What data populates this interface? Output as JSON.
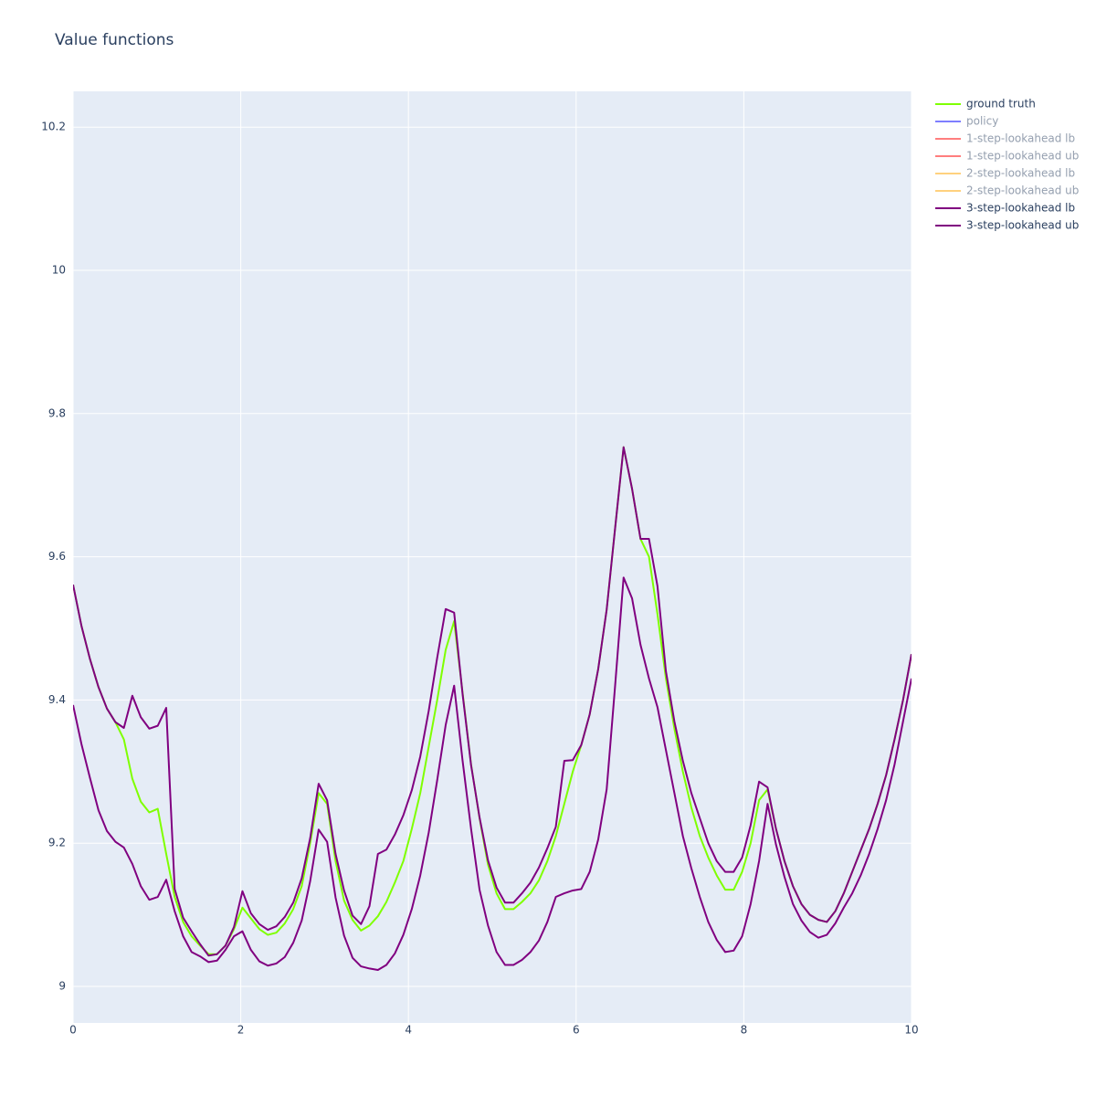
{
  "chart_data": {
    "type": "line",
    "title": "Value functions",
    "x": [
      0,
      0.101,
      0.202,
      0.303,
      0.404,
      0.505,
      0.606,
      0.707,
      0.808,
      0.909,
      1.01,
      1.111,
      1.212,
      1.313,
      1.414,
      1.515,
      1.616,
      1.717,
      1.818,
      1.919,
      2.02,
      2.121,
      2.222,
      2.323,
      2.424,
      2.525,
      2.626,
      2.727,
      2.828,
      2.929,
      3.03,
      3.131,
      3.232,
      3.333,
      3.434,
      3.535,
      3.636,
      3.737,
      3.838,
      3.939,
      4.04,
      4.141,
      4.242,
      4.343,
      4.444,
      4.545,
      4.646,
      4.747,
      4.848,
      4.949,
      5.051,
      5.152,
      5.253,
      5.354,
      5.455,
      5.556,
      5.657,
      5.758,
      5.859,
      5.96,
      6.061,
      6.162,
      6.263,
      6.364,
      6.465,
      6.566,
      6.667,
      6.768,
      6.869,
      6.97,
      7.071,
      7.172,
      7.273,
      7.374,
      7.475,
      7.576,
      7.677,
      7.778,
      7.879,
      7.98,
      8.081,
      8.182,
      8.283,
      8.384,
      8.485,
      8.586,
      8.687,
      8.788,
      8.889,
      8.99,
      9.091,
      9.192,
      9.293,
      9.394,
      9.495,
      9.596,
      9.697,
      9.798,
      9.899,
      10
    ],
    "series": [
      {
        "name": "ground truth",
        "color": "#7fff00",
        "values": [
          9.561,
          9.503,
          9.457,
          9.418,
          9.388,
          9.369,
          9.345,
          9.29,
          9.258,
          9.243,
          9.248,
          9.185,
          9.125,
          9.09,
          9.07,
          9.057,
          9.045,
          9.045,
          9.057,
          9.08,
          9.11,
          9.095,
          9.08,
          9.072,
          9.075,
          9.088,
          9.108,
          9.14,
          9.2,
          9.27,
          9.255,
          9.175,
          9.12,
          9.093,
          9.078,
          9.085,
          9.098,
          9.118,
          9.145,
          9.175,
          9.22,
          9.27,
          9.335,
          9.4,
          9.47,
          9.51,
          9.41,
          9.31,
          9.235,
          9.17,
          9.13,
          9.108,
          9.108,
          9.118,
          9.13,
          9.148,
          9.175,
          9.21,
          9.255,
          9.3,
          9.337,
          9.38,
          9.443,
          9.526,
          9.64,
          9.753,
          9.695,
          9.625,
          9.6,
          9.52,
          9.43,
          9.36,
          9.3,
          9.25,
          9.21,
          9.18,
          9.155,
          9.135,
          9.135,
          9.16,
          9.2,
          9.26,
          9.275,
          9.22,
          9.175,
          9.14,
          9.115,
          9.1,
          9.093,
          9.09,
          9.105,
          9.13,
          9.16,
          9.19,
          9.22,
          9.255,
          9.295,
          9.345,
          9.4,
          9.464
        ]
      },
      {
        "name": "policy",
        "color": "#0000ff",
        "visible": "legendonly"
      },
      {
        "name": "1-step-lookahead lb",
        "color": "#ff0000",
        "visible": "legendonly"
      },
      {
        "name": "1-step-lookahead ub",
        "color": "#ff0000",
        "visible": "legendonly"
      },
      {
        "name": "2-step-lookahead lb",
        "color": "#ffa500",
        "visible": "legendonly"
      },
      {
        "name": "2-step-lookahead ub",
        "color": "#ffa500",
        "visible": "legendonly"
      },
      {
        "name": "3-step-lookahead lb",
        "color": "#800080",
        "values": [
          9.393,
          9.338,
          9.291,
          9.246,
          9.217,
          9.202,
          9.194,
          9.171,
          9.14,
          9.121,
          9.125,
          9.149,
          9.105,
          9.07,
          9.048,
          9.042,
          9.034,
          9.036,
          9.051,
          9.07,
          9.077,
          9.051,
          9.035,
          9.029,
          9.032,
          9.041,
          9.061,
          9.092,
          9.147,
          9.219,
          9.202,
          9.124,
          9.071,
          9.04,
          9.028,
          9.025,
          9.023,
          9.03,
          9.046,
          9.072,
          9.108,
          9.155,
          9.215,
          9.288,
          9.365,
          9.42,
          9.315,
          9.22,
          9.135,
          9.085,
          9.048,
          9.03,
          9.03,
          9.037,
          9.048,
          9.064,
          9.09,
          9.125,
          9.13,
          9.134,
          9.136,
          9.16,
          9.205,
          9.275,
          9.42,
          9.571,
          9.542,
          9.477,
          9.43,
          9.39,
          9.33,
          9.27,
          9.21,
          9.165,
          9.125,
          9.09,
          9.065,
          9.048,
          9.05,
          9.07,
          9.115,
          9.175,
          9.255,
          9.198,
          9.153,
          9.115,
          9.092,
          9.076,
          9.068,
          9.072,
          9.088,
          9.11,
          9.13,
          9.155,
          9.185,
          9.22,
          9.26,
          9.31,
          9.37,
          9.43
        ]
      },
      {
        "name": "3-step-lookahead ub",
        "color": "#800080",
        "values": [
          9.561,
          9.503,
          9.457,
          9.418,
          9.388,
          9.369,
          9.361,
          9.406,
          9.376,
          9.36,
          9.364,
          9.389,
          9.136,
          9.096,
          9.077,
          9.059,
          9.043,
          9.045,
          9.057,
          9.083,
          9.133,
          9.102,
          9.087,
          9.079,
          9.084,
          9.097,
          9.117,
          9.151,
          9.207,
          9.283,
          9.26,
          9.185,
          9.134,
          9.099,
          9.087,
          9.112,
          9.185,
          9.191,
          9.212,
          9.239,
          9.274,
          9.321,
          9.385,
          9.459,
          9.527,
          9.522,
          9.408,
          9.309,
          9.236,
          9.176,
          9.138,
          9.117,
          9.117,
          9.13,
          9.145,
          9.166,
          9.193,
          9.223,
          9.315,
          9.316,
          9.337,
          9.38,
          9.443,
          9.526,
          9.64,
          9.753,
          9.695,
          9.625,
          9.625,
          9.559,
          9.44,
          9.37,
          9.315,
          9.27,
          9.235,
          9.2,
          9.175,
          9.16,
          9.16,
          9.18,
          9.225,
          9.286,
          9.278,
          9.22,
          9.175,
          9.14,
          9.115,
          9.1,
          9.093,
          9.09,
          9.105,
          9.13,
          9.16,
          9.19,
          9.22,
          9.255,
          9.295,
          9.345,
          9.4,
          9.464
        ]
      }
    ],
    "xlim": [
      0,
      10
    ],
    "xticks": [
      0,
      2,
      4,
      6,
      8,
      10
    ],
    "ylim": [
      8.949,
      10.25
    ],
    "yticks": [
      9,
      9.2,
      9.4,
      9.6,
      9.8,
      10,
      10.2
    ],
    "grid": true,
    "legend_position": "outside top right"
  }
}
